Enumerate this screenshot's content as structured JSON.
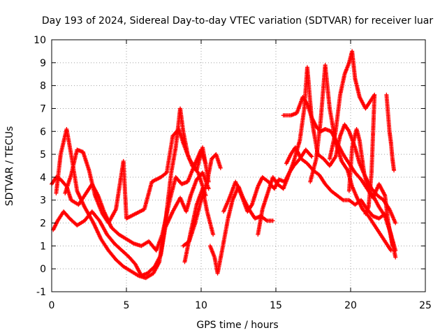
{
  "chart_data": {
    "type": "scatter",
    "title": "Day 193 of 2024, Sidereal Day-to-day VTEC variation (SDTVAR) for receiver luar",
    "xlabel": "GPS time / hours",
    "ylabel": "SDTVAR / TECUs",
    "xlim": [
      0,
      25
    ],
    "ylim": [
      -1,
      10
    ],
    "xticks": [
      "0",
      "5",
      "10",
      "15",
      "20",
      "25"
    ],
    "yticks": [
      "-1",
      "0",
      "1",
      "2",
      "3",
      "4",
      "5",
      "6",
      "7",
      "8",
      "9",
      "10"
    ],
    "grid": true,
    "marker": "plus",
    "color": "#ff0000",
    "tracks": [
      [
        [
          0.0,
          3.7
        ],
        [
          0.3,
          4.0
        ],
        [
          0.6,
          3.9
        ],
        [
          1.0,
          3.6
        ],
        [
          1.3,
          3.0
        ],
        [
          1.8,
          2.8
        ],
        [
          2.3,
          3.3
        ],
        [
          2.7,
          3.7
        ],
        [
          3.1,
          3.2
        ],
        [
          3.5,
          2.5
        ],
        [
          4.0,
          1.8
        ],
        [
          4.5,
          1.5
        ],
        [
          5.0,
          1.3
        ],
        [
          5.5,
          1.1
        ],
        [
          6.0,
          1.0
        ],
        [
          6.5,
          1.2
        ],
        [
          7.0,
          0.8
        ],
        [
          7.4,
          1.5
        ],
        [
          7.9,
          3.0
        ],
        [
          8.3,
          4.0
        ],
        [
          8.7,
          3.7
        ],
        [
          9.1,
          3.8
        ],
        [
          9.6,
          4.6
        ],
        [
          10.0,
          5.2
        ],
        [
          10.3,
          4.6
        ]
      ],
      [
        [
          0.1,
          1.7
        ],
        [
          0.4,
          2.1
        ],
        [
          0.8,
          2.5
        ],
        [
          1.2,
          2.2
        ],
        [
          1.7,
          1.9
        ],
        [
          2.2,
          2.1
        ],
        [
          2.7,
          2.5
        ],
        [
          3.2,
          2.1
        ],
        [
          3.7,
          1.5
        ],
        [
          4.2,
          1.1
        ],
        [
          4.7,
          0.8
        ],
        [
          5.2,
          0.5
        ],
        [
          5.6,
          0.2
        ],
        [
          6.0,
          -0.3
        ],
        [
          6.4,
          -0.2
        ],
        [
          6.9,
          0.1
        ],
        [
          7.3,
          0.6
        ],
        [
          7.6,
          1.8
        ],
        [
          8.1,
          2.5
        ],
        [
          8.6,
          3.1
        ],
        [
          9.0,
          2.5
        ],
        [
          9.3,
          3.2
        ],
        [
          9.7,
          3.9
        ],
        [
          10.1,
          4.2
        ],
        [
          10.5,
          3.5
        ]
      ],
      [
        [
          0.3,
          3.3
        ],
        [
          0.6,
          5.0
        ],
        [
          1.0,
          6.1
        ],
        [
          1.3,
          5.0
        ],
        [
          1.7,
          3.4
        ],
        [
          2.2,
          2.7
        ],
        [
          2.8,
          2.0
        ],
        [
          3.3,
          1.3
        ],
        [
          3.8,
          0.8
        ],
        [
          4.3,
          0.4
        ],
        [
          4.8,
          0.1
        ],
        [
          5.3,
          -0.1
        ],
        [
          5.8,
          -0.3
        ],
        [
          6.3,
          -0.4
        ],
        [
          6.8,
          -0.2
        ],
        [
          7.2,
          0.3
        ],
        [
          7.6,
          2.0
        ],
        [
          8.0,
          4.2
        ],
        [
          8.3,
          5.3
        ],
        [
          8.6,
          7.0
        ],
        [
          8.8,
          6.0
        ],
        [
          9.1,
          5.0
        ],
        [
          9.4,
          4.5
        ],
        [
          9.8,
          4.2
        ],
        [
          10.3,
          3.2
        ]
      ],
      [
        [
          0.9,
          3.3
        ],
        [
          1.3,
          4.1
        ],
        [
          1.7,
          5.2
        ],
        [
          2.1,
          5.1
        ],
        [
          2.5,
          4.3
        ],
        [
          2.9,
          3.2
        ],
        [
          3.4,
          2.4
        ],
        [
          3.8,
          2.0
        ],
        [
          4.3,
          2.6
        ],
        [
          4.8,
          4.7
        ],
        [
          5.0,
          2.2
        ],
        [
          5.6,
          2.4
        ],
        [
          6.2,
          2.6
        ],
        [
          6.7,
          3.8
        ],
        [
          7.3,
          4.0
        ],
        [
          7.7,
          4.2
        ],
        [
          8.1,
          5.8
        ],
        [
          8.5,
          6.1
        ],
        [
          8.8,
          5.5
        ],
        [
          9.2,
          4.8
        ],
        [
          9.7,
          4.3
        ],
        [
          10.1,
          5.3
        ],
        [
          10.5,
          3.8
        ]
      ],
      [
        [
          8.8,
          1.0
        ],
        [
          9.2,
          1.2
        ],
        [
          9.6,
          2.0
        ],
        [
          10.0,
          3.0
        ],
        [
          10.4,
          3.8
        ],
        [
          10.7,
          4.8
        ],
        [
          11.0,
          5.0
        ],
        [
          11.3,
          4.4
        ]
      ],
      [
        [
          8.9,
          0.3
        ],
        [
          9.3,
          1.6
        ],
        [
          9.7,
          2.8
        ],
        [
          10.1,
          3.5
        ],
        [
          10.4,
          2.5
        ],
        [
          10.8,
          1.5
        ]
      ],
      [
        [
          10.6,
          1.0
        ],
        [
          10.9,
          0.5
        ],
        [
          11.1,
          -0.2
        ],
        [
          11.4,
          0.8
        ],
        [
          11.8,
          2.2
        ],
        [
          12.1,
          3.0
        ],
        [
          12.5,
          3.6
        ],
        [
          12.8,
          3.1
        ],
        [
          13.2,
          2.6
        ],
        [
          13.6,
          2.2
        ],
        [
          14.0,
          2.3
        ],
        [
          14.4,
          2.1
        ],
        [
          14.8,
          2.1
        ]
      ],
      [
        [
          11.5,
          2.5
        ],
        [
          11.9,
          3.1
        ],
        [
          12.3,
          3.8
        ],
        [
          12.7,
          3.2
        ],
        [
          13.1,
          2.5
        ],
        [
          13.4,
          2.8
        ],
        [
          13.8,
          3.6
        ],
        [
          14.1,
          4.0
        ],
        [
          14.5,
          3.8
        ],
        [
          14.9,
          3.5
        ],
        [
          15.2,
          3.9
        ],
        [
          15.6,
          3.8
        ],
        [
          15.9,
          4.2
        ],
        [
          16.2,
          4.5
        ],
        [
          16.6,
          4.8
        ],
        [
          17.0,
          5.2
        ],
        [
          17.4,
          4.9
        ]
      ],
      [
        [
          13.8,
          1.5
        ],
        [
          14.1,
          2.6
        ],
        [
          14.4,
          3.2
        ],
        [
          14.8,
          4.0
        ],
        [
          15.1,
          3.7
        ],
        [
          15.5,
          3.5
        ],
        [
          15.8,
          4.0
        ],
        [
          16.2,
          4.7
        ],
        [
          16.6,
          5.6
        ],
        [
          16.9,
          7.0
        ],
        [
          17.1,
          8.8
        ],
        [
          17.4,
          6.5
        ],
        [
          17.8,
          5.0
        ],
        [
          18.2,
          4.8
        ],
        [
          18.6,
          4.5
        ],
        [
          19.0,
          4.9
        ],
        [
          19.3,
          5.8
        ],
        [
          19.6,
          6.3
        ],
        [
          19.9,
          6.0
        ],
        [
          20.3,
          5.3
        ],
        [
          20.6,
          4.6
        ],
        [
          21.0,
          4.0
        ],
        [
          21.4,
          3.5
        ],
        [
          21.8,
          3.2
        ],
        [
          22.2,
          3.0
        ],
        [
          22.6,
          2.6
        ],
        [
          23.0,
          2.0
        ]
      ],
      [
        [
          15.7,
          4.6
        ],
        [
          16.0,
          5.0
        ],
        [
          16.3,
          5.3
        ],
        [
          16.7,
          4.8
        ],
        [
          17.1,
          4.6
        ],
        [
          17.5,
          4.3
        ],
        [
          17.9,
          4.1
        ],
        [
          18.3,
          3.7
        ],
        [
          18.7,
          3.4
        ],
        [
          19.1,
          3.2
        ],
        [
          19.5,
          3.0
        ],
        [
          19.9,
          3.0
        ],
        [
          20.3,
          2.8
        ],
        [
          20.7,
          3.0
        ],
        [
          21.1,
          2.6
        ],
        [
          21.5,
          2.3
        ],
        [
          21.9,
          2.2
        ],
        [
          22.3,
          2.4
        ],
        [
          22.7,
          1.5
        ],
        [
          23.0,
          0.5
        ]
      ],
      [
        [
          15.5,
          6.7
        ],
        [
          16.0,
          6.7
        ],
        [
          16.4,
          6.8
        ],
        [
          16.8,
          7.5
        ],
        [
          17.1,
          7.2
        ],
        [
          17.4,
          6.6
        ],
        [
          17.7,
          6.2
        ],
        [
          18.0,
          6.0
        ],
        [
          18.3,
          6.1
        ],
        [
          18.7,
          6.0
        ],
        [
          19.1,
          5.5
        ],
        [
          19.5,
          5.0
        ],
        [
          19.9,
          4.6
        ],
        [
          20.3,
          4.2
        ],
        [
          20.7,
          3.9
        ],
        [
          21.1,
          3.5
        ],
        [
          21.5,
          3.2
        ],
        [
          21.9,
          2.7
        ],
        [
          22.3,
          2.3
        ],
        [
          22.7,
          1.5
        ],
        [
          23.0,
          0.8
        ]
      ],
      [
        [
          17.3,
          3.8
        ],
        [
          17.7,
          4.8
        ],
        [
          18.0,
          6.5
        ],
        [
          18.3,
          8.9
        ],
        [
          18.6,
          7.0
        ],
        [
          19.0,
          5.5
        ],
        [
          19.4,
          4.7
        ],
        [
          19.8,
          4.3
        ],
        [
          20.1,
          3.6
        ],
        [
          20.5,
          3.0
        ],
        [
          20.8,
          2.6
        ],
        [
          21.2,
          2.3
        ],
        [
          21.6,
          1.9
        ],
        [
          22.0,
          1.5
        ],
        [
          22.4,
          1.1
        ],
        [
          22.7,
          0.8
        ]
      ],
      [
        [
          18.6,
          4.8
        ],
        [
          19.0,
          6.0
        ],
        [
          19.3,
          7.6
        ],
        [
          19.6,
          8.5
        ],
        [
          19.9,
          9.0
        ],
        [
          20.1,
          9.5
        ],
        [
          20.3,
          8.3
        ],
        [
          20.6,
          7.5
        ],
        [
          21.0,
          7.0
        ],
        [
          21.3,
          7.3
        ],
        [
          21.6,
          7.6
        ],
        [
          21.4,
          4.2
        ],
        [
          21.2,
          2.7
        ],
        [
          21.0,
          2.4
        ]
      ],
      [
        [
          19.9,
          3.4
        ],
        [
          20.1,
          5.3
        ],
        [
          20.4,
          6.1
        ],
        [
          20.6,
          5.6
        ],
        [
          20.9,
          4.2
        ],
        [
          21.2,
          3.4
        ],
        [
          21.5,
          3.1
        ],
        [
          21.9,
          3.7
        ],
        [
          22.3,
          3.2
        ],
        [
          22.5,
          2.1
        ],
        [
          22.8,
          1.0
        ]
      ],
      [
        [
          22.4,
          7.6
        ],
        [
          22.5,
          6.8
        ],
        [
          22.6,
          6.0
        ],
        [
          22.7,
          5.5
        ],
        [
          22.8,
          4.8
        ],
        [
          22.9,
          4.3
        ]
      ]
    ]
  }
}
